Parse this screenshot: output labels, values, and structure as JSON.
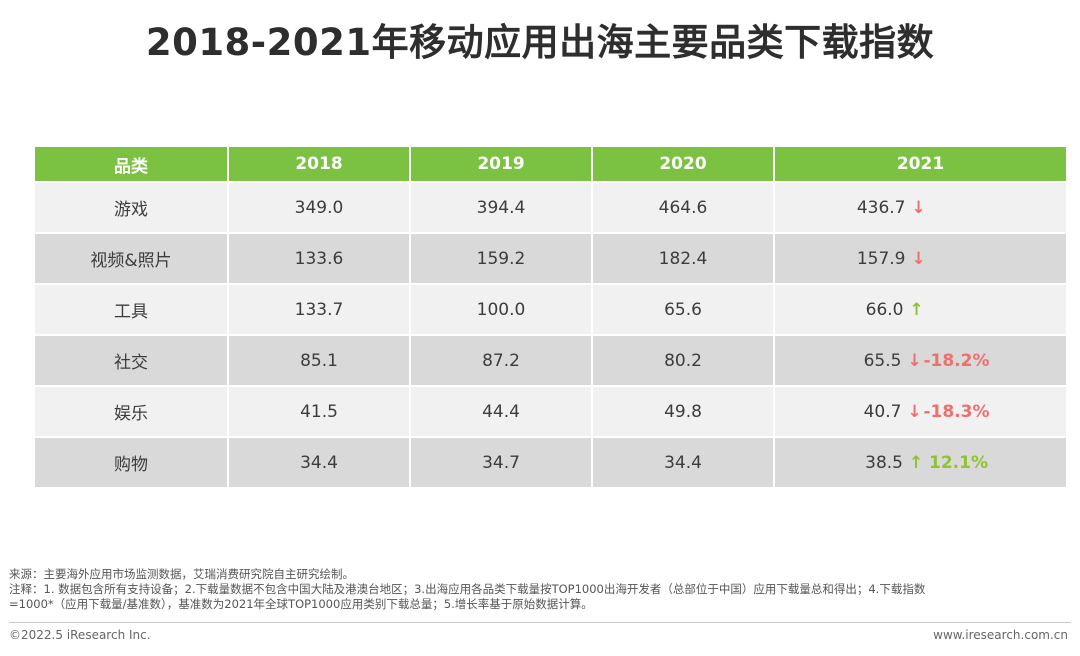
{
  "chart_data": {
    "type": "table",
    "title": "2018-2021年移动应用出海主要品类下载指数",
    "columns": [
      "品类",
      "2018",
      "2019",
      "2020",
      "2021"
    ],
    "rows": [
      {
        "category": "游戏",
        "values": [
          "349.0",
          "394.4",
          "464.6",
          "436.7"
        ],
        "trend": "down",
        "change": ""
      },
      {
        "category": "视频&照片",
        "values": [
          "133.6",
          "159.2",
          "182.4",
          "157.9"
        ],
        "trend": "down",
        "change": ""
      },
      {
        "category": "工具",
        "values": [
          "133.7",
          "100.0",
          "65.6",
          "66.0"
        ],
        "trend": "up",
        "change": ""
      },
      {
        "category": "社交",
        "values": [
          "85.1",
          "87.2",
          "80.2",
          "65.5"
        ],
        "trend": "down",
        "change": "-18.2%"
      },
      {
        "category": "娱乐",
        "values": [
          "41.5",
          "44.4",
          "49.8",
          "40.7"
        ],
        "trend": "down",
        "change": "-18.3%"
      },
      {
        "category": "购物",
        "values": [
          "34.4",
          "34.7",
          "34.4",
          "38.5"
        ],
        "trend": "up",
        "change": "12.1%"
      }
    ],
    "colors": {
      "header": "#7cc242",
      "down": "#ef6f6f",
      "up": "#8fc431"
    }
  },
  "icons": {
    "down": "arrow-down-icon",
    "up": "arrow-up-icon"
  },
  "notes": {
    "source": "来源：主要海外应用市场监测数据，艾瑞消费研究院自主研究绘制。",
    "note_line1": "注释：1. 数据包含所有支持设备；2.下载量数据不包含中国大陆及港澳台地区；3.出海应用各品类下载量按TOP1000出海开发者（总部位于中国）应用下载量总和得出；4.下载指数",
    "note_line2": "=1000*（应用下载量/基准数），基准数为2021年全球TOP1000应用类别下载总量；5.增长率基于原始数据计算。"
  },
  "footer": {
    "copyright": "©2022.5 iResearch Inc.",
    "website": "www.iresearch.com.cn"
  }
}
